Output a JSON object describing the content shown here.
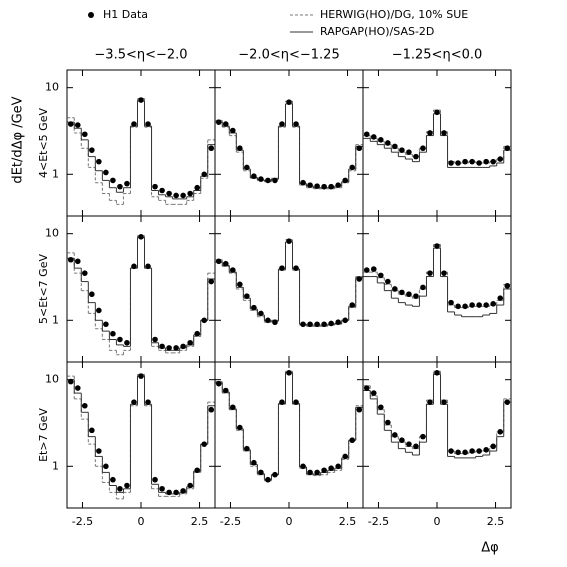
{
  "ylabel": "dEt/dΔφ /GeV",
  "xlabel": "Δφ",
  "chart_data": [
    {
      "type": "scatter",
      "title": "−3.5<η<−2.0",
      "ylabel": "4<Et<5 GeV",
      "x": [
        -3.0,
        -2.7,
        -2.4,
        -2.1,
        -1.8,
        -1.5,
        -1.2,
        -0.9,
        -0.6,
        -0.3,
        0,
        0.3,
        0.6,
        0.9,
        1.2,
        1.5,
        1.8,
        2.1,
        2.4,
        2.7,
        3.0
      ],
      "xlim": [
        -3.16,
        3.16
      ],
      "xticks": [
        -2.5,
        0,
        2.5
      ],
      "ylim": [
        0.33,
        16
      ],
      "yticks": [
        1,
        10
      ],
      "ylog": true,
      "series": [
        {
          "name": "H1 Data",
          "style": "points",
          "color": "#000000",
          "values": [
            3.8,
            3.7,
            2.9,
            1.9,
            1.4,
            1.05,
            0.85,
            0.72,
            0.78,
            3.8,
            7.2,
            3.8,
            0.72,
            0.65,
            0.6,
            0.57,
            0.57,
            0.6,
            0.7,
            1.0,
            2.0
          ]
        },
        {
          "name": "HERWIG(HO)/DG, 10% SUE",
          "style": "dashed",
          "color": "#777777",
          "values": [
            4.5,
            3.0,
            2.0,
            1.2,
            0.8,
            0.6,
            0.5,
            0.45,
            0.6,
            3.5,
            7.5,
            3.5,
            0.55,
            0.5,
            0.45,
            0.45,
            0.45,
            0.5,
            0.6,
            0.9,
            2.5
          ]
        },
        {
          "name": "RAPGAP(HO)/SAS-2D",
          "style": "solid",
          "color": "#333333",
          "values": [
            4.0,
            3.4,
            2.5,
            1.6,
            1.1,
            0.85,
            0.7,
            0.62,
            0.7,
            3.6,
            7.0,
            3.6,
            0.65,
            0.58,
            0.55,
            0.52,
            0.52,
            0.55,
            0.65,
            0.95,
            2.2
          ]
        }
      ]
    },
    {
      "type": "scatter",
      "title": "−2.0<η<−1.25",
      "x": [
        -3.0,
        -2.7,
        -2.4,
        -2.1,
        -1.8,
        -1.5,
        -1.2,
        -0.9,
        -0.6,
        -0.3,
        0,
        0.3,
        0.6,
        0.9,
        1.2,
        1.5,
        1.8,
        2.1,
        2.4,
        2.7,
        3.0
      ],
      "xlim": [
        -3.16,
        3.16
      ],
      "xticks": [
        -2.5,
        0,
        2.5
      ],
      "ylim": [
        0.33,
        16
      ],
      "yticks": [
        1,
        10
      ],
      "ylog": true,
      "series": [
        {
          "style": "points",
          "color": "#000000",
          "values": [
            4.0,
            3.8,
            3.2,
            2.0,
            1.2,
            0.95,
            0.88,
            0.85,
            0.85,
            3.8,
            6.8,
            3.8,
            0.8,
            0.75,
            0.73,
            0.72,
            0.72,
            0.75,
            0.85,
            1.2,
            2.0
          ]
        },
        {
          "style": "dashed",
          "color": "#777777",
          "values": [
            4.2,
            3.5,
            2.8,
            1.8,
            1.1,
            0.9,
            0.85,
            0.82,
            0.9,
            3.5,
            7.0,
            3.5,
            0.75,
            0.7,
            0.68,
            0.68,
            0.68,
            0.7,
            0.8,
            1.1,
            2.2
          ]
        },
        {
          "style": "solid",
          "color": "#333333",
          "values": [
            4.0,
            3.6,
            3.0,
            1.9,
            1.15,
            0.92,
            0.86,
            0.84,
            0.88,
            3.6,
            6.5,
            3.6,
            0.78,
            0.73,
            0.7,
            0.7,
            0.7,
            0.73,
            0.82,
            1.15,
            2.1
          ]
        }
      ]
    },
    {
      "type": "scatter",
      "title": "−1.25<η<0.0",
      "x": [
        -3.0,
        -2.7,
        -2.4,
        -2.1,
        -1.8,
        -1.5,
        -1.2,
        -0.9,
        -0.6,
        -0.3,
        0,
        0.3,
        0.6,
        0.9,
        1.2,
        1.5,
        1.8,
        2.1,
        2.4,
        2.7,
        3.0
      ],
      "xlim": [
        -3.16,
        3.16
      ],
      "xticks": [
        -2.5,
        0,
        2.5
      ],
      "ylim": [
        0.33,
        16
      ],
      "yticks": [
        1,
        10
      ],
      "ylog": true,
      "series": [
        {
          "style": "points",
          "color": "#000000",
          "values": [
            2.9,
            2.7,
            2.5,
            2.3,
            2.1,
            1.9,
            1.8,
            1.6,
            2.0,
            3.0,
            5.2,
            3.0,
            1.35,
            1.35,
            1.4,
            1.4,
            1.35,
            1.4,
            1.4,
            1.5,
            2.0
          ]
        },
        {
          "style": "dashed",
          "color": "#777777",
          "values": [
            2.8,
            2.6,
            2.4,
            2.2,
            2.0,
            1.8,
            1.7,
            1.6,
            2.0,
            3.1,
            5.5,
            3.1,
            1.4,
            1.35,
            1.35,
            1.4,
            1.35,
            1.35,
            1.4,
            1.5,
            2.1
          ]
        },
        {
          "style": "solid",
          "color": "#333333",
          "values": [
            2.6,
            2.4,
            2.2,
            2.0,
            1.8,
            1.6,
            1.5,
            1.4,
            1.8,
            2.8,
            5.0,
            2.8,
            1.2,
            1.2,
            1.2,
            1.2,
            1.2,
            1.2,
            1.25,
            1.35,
            1.9
          ]
        }
      ]
    },
    {
      "type": "scatter",
      "ylabel": "5<Et<7 GeV",
      "x": [
        -3.0,
        -2.7,
        -2.4,
        -2.1,
        -1.8,
        -1.5,
        -1.2,
        -0.9,
        -0.6,
        -0.3,
        0,
        0.3,
        0.6,
        0.9,
        1.2,
        1.5,
        1.8,
        2.1,
        2.4,
        2.7,
        3.0
      ],
      "xlim": [
        -3.16,
        3.16
      ],
      "xticks": [
        -2.5,
        0,
        2.5
      ],
      "ylim": [
        0.33,
        16
      ],
      "yticks": [
        1,
        10
      ],
      "ylog": true,
      "series": [
        {
          "style": "points",
          "color": "#000000",
          "values": [
            5.0,
            4.8,
            3.5,
            2.0,
            1.3,
            0.9,
            0.7,
            0.6,
            0.55,
            4.2,
            9.2,
            4.2,
            0.6,
            0.5,
            0.48,
            0.48,
            0.5,
            0.55,
            0.7,
            1.0,
            2.8
          ]
        },
        {
          "style": "dashed",
          "color": "#777777",
          "values": [
            6.0,
            3.5,
            2.2,
            1.2,
            0.8,
            0.6,
            0.45,
            0.4,
            0.45,
            4.0,
            9.5,
            4.0,
            0.5,
            0.45,
            0.42,
            0.42,
            0.45,
            0.5,
            0.65,
            1.0,
            3.5
          ]
        },
        {
          "style": "solid",
          "color": "#333333",
          "values": [
            5.2,
            4.0,
            2.8,
            1.6,
            1.0,
            0.75,
            0.6,
            0.52,
            0.5,
            4.0,
            9.0,
            4.0,
            0.55,
            0.48,
            0.45,
            0.45,
            0.48,
            0.52,
            0.68,
            1.0,
            3.0
          ]
        }
      ]
    },
    {
      "type": "scatter",
      "x": [
        -3.0,
        -2.7,
        -2.4,
        -2.1,
        -1.8,
        -1.5,
        -1.2,
        -0.9,
        -0.6,
        -0.3,
        0,
        0.3,
        0.6,
        0.9,
        1.2,
        1.5,
        1.8,
        2.1,
        2.4,
        2.7,
        3.0
      ],
      "xlim": [
        -3.16,
        3.16
      ],
      "xticks": [
        -2.5,
        0,
        2.5
      ],
      "ylim": [
        0.33,
        16
      ],
      "yticks": [
        1,
        10
      ],
      "ylog": true,
      "series": [
        {
          "style": "points",
          "color": "#000000",
          "values": [
            4.8,
            4.5,
            3.8,
            2.6,
            1.9,
            1.4,
            1.2,
            1.0,
            0.95,
            4.0,
            8.2,
            4.0,
            0.9,
            0.9,
            0.9,
            0.9,
            0.92,
            0.95,
            1.0,
            1.5,
            3.0
          ]
        },
        {
          "style": "dashed",
          "color": "#777777",
          "values": [
            5.0,
            4.2,
            3.5,
            2.3,
            1.7,
            1.3,
            1.1,
            0.95,
            1.0,
            3.8,
            8.5,
            3.8,
            0.88,
            0.85,
            0.85,
            0.85,
            0.88,
            0.9,
            1.0,
            1.4,
            3.2
          ]
        },
        {
          "style": "solid",
          "color": "#333333",
          "values": [
            4.7,
            4.3,
            3.6,
            2.4,
            1.8,
            1.35,
            1.15,
            0.98,
            0.98,
            3.9,
            8.0,
            3.9,
            0.9,
            0.88,
            0.88,
            0.88,
            0.9,
            0.92,
            1.0,
            1.45,
            3.1
          ]
        }
      ]
    },
    {
      "type": "scatter",
      "x": [
        -3.0,
        -2.7,
        -2.4,
        -2.1,
        -1.8,
        -1.5,
        -1.2,
        -0.9,
        -0.6,
        -0.3,
        0,
        0.3,
        0.6,
        0.9,
        1.2,
        1.5,
        1.8,
        2.1,
        2.4,
        2.7,
        3.0
      ],
      "xlim": [
        -3.16,
        3.16
      ],
      "xticks": [
        -2.5,
        0,
        2.5
      ],
      "ylim": [
        0.33,
        16
      ],
      "yticks": [
        1,
        10
      ],
      "ylog": true,
      "series": [
        {
          "style": "points",
          "color": "#000000",
          "values": [
            3.8,
            3.9,
            3.3,
            2.8,
            2.3,
            2.1,
            2.0,
            1.9,
            2.4,
            3.5,
            7.2,
            3.5,
            1.6,
            1.45,
            1.45,
            1.5,
            1.5,
            1.5,
            1.55,
            1.8,
            2.5
          ]
        },
        {
          "style": "dashed",
          "color": "#777777",
          "values": [
            3.6,
            3.6,
            3.1,
            2.6,
            2.2,
            2.0,
            1.9,
            1.8,
            2.3,
            3.6,
            7.5,
            3.6,
            1.5,
            1.4,
            1.4,
            1.45,
            1.45,
            1.45,
            1.5,
            1.7,
            2.6
          ]
        },
        {
          "style": "solid",
          "color": "#333333",
          "values": [
            3.2,
            3.2,
            2.7,
            2.2,
            1.8,
            1.6,
            1.5,
            1.45,
            1.9,
            3.2,
            6.8,
            3.2,
            1.25,
            1.15,
            1.1,
            1.1,
            1.1,
            1.15,
            1.2,
            1.5,
            2.3
          ]
        }
      ]
    },
    {
      "type": "scatter",
      "ylabel": "Et>7 GeV",
      "x": [
        -3.0,
        -2.7,
        -2.4,
        -2.1,
        -1.8,
        -1.5,
        -1.2,
        -0.9,
        -0.6,
        -0.3,
        0,
        0.3,
        0.6,
        0.9,
        1.2,
        1.5,
        1.8,
        2.1,
        2.4,
        2.7,
        3.0
      ],
      "xlim": [
        -3.16,
        3.16
      ],
      "xticks": [
        -2.5,
        0,
        2.5
      ],
      "ylim": [
        0.33,
        16
      ],
      "yticks": [
        1,
        10
      ],
      "ylog": true,
      "series": [
        {
          "style": "points",
          "color": "#000000",
          "values": [
            9.5,
            8.0,
            5.0,
            2.6,
            1.5,
            1.0,
            0.7,
            0.55,
            0.6,
            5.5,
            11.0,
            5.5,
            0.7,
            0.55,
            0.5,
            0.5,
            0.52,
            0.6,
            0.9,
            1.8,
            4.5
          ]
        },
        {
          "style": "dashed",
          "color": "#777777",
          "values": [
            11.0,
            6.0,
            3.5,
            1.8,
            1.0,
            0.65,
            0.5,
            0.42,
            0.5,
            5.0,
            11.5,
            5.0,
            0.55,
            0.45,
            0.45,
            0.45,
            0.48,
            0.55,
            0.85,
            1.8,
            5.5
          ]
        },
        {
          "style": "solid",
          "color": "#333333",
          "values": [
            10.0,
            7.0,
            4.2,
            2.2,
            1.3,
            0.85,
            0.6,
            0.5,
            0.55,
            5.2,
            11.0,
            5.2,
            0.62,
            0.5,
            0.48,
            0.48,
            0.5,
            0.58,
            0.88,
            1.8,
            5.0
          ]
        }
      ]
    },
    {
      "type": "scatter",
      "x": [
        -3.0,
        -2.7,
        -2.4,
        -2.1,
        -1.8,
        -1.5,
        -1.2,
        -0.9,
        -0.6,
        -0.3,
        0,
        0.3,
        0.6,
        0.9,
        1.2,
        1.5,
        1.8,
        2.1,
        2.4,
        2.7,
        3.0
      ],
      "xlim": [
        -3.16,
        3.16
      ],
      "xticks": [
        -2.5,
        0,
        2.5
      ],
      "ylim": [
        0.33,
        16
      ],
      "yticks": [
        1,
        10
      ],
      "ylog": true,
      "series": [
        {
          "style": "points",
          "color": "#000000",
          "values": [
            9.0,
            7.5,
            4.8,
            2.8,
            1.6,
            1.1,
            0.85,
            0.7,
            0.8,
            5.5,
            12.0,
            5.5,
            1.0,
            0.85,
            0.85,
            0.9,
            0.95,
            1.0,
            1.3,
            2.0,
            4.5
          ]
        },
        {
          "style": "dashed",
          "color": "#777777",
          "values": [
            9.5,
            7.0,
            4.5,
            2.6,
            1.5,
            1.0,
            0.8,
            0.68,
            0.8,
            5.2,
            12.5,
            5.2,
            0.95,
            0.8,
            0.78,
            0.8,
            0.85,
            0.9,
            1.2,
            2.0,
            5.0
          ]
        },
        {
          "style": "solid",
          "color": "#333333",
          "values": [
            9.2,
            7.2,
            4.6,
            2.7,
            1.55,
            1.05,
            0.82,
            0.7,
            0.8,
            5.3,
            12.0,
            5.3,
            0.98,
            0.82,
            0.8,
            0.85,
            0.9,
            0.95,
            1.25,
            2.0,
            4.8
          ]
        }
      ]
    },
    {
      "type": "scatter",
      "x": [
        -3.0,
        -2.7,
        -2.4,
        -2.1,
        -1.8,
        -1.5,
        -1.2,
        -0.9,
        -0.6,
        -0.3,
        0,
        0.3,
        0.6,
        0.9,
        1.2,
        1.5,
        1.8,
        2.1,
        2.4,
        2.7,
        3.0
      ],
      "xlim": [
        -3.16,
        3.16
      ],
      "xticks": [
        -2.5,
        0,
        2.5
      ],
      "ylim": [
        0.33,
        16
      ],
      "yticks": [
        1,
        10
      ],
      "ylog": true,
      "series": [
        {
          "style": "points",
          "color": "#000000",
          "values": [
            8.0,
            7.0,
            4.8,
            3.2,
            2.3,
            2.0,
            1.8,
            1.7,
            2.2,
            5.5,
            12.0,
            5.5,
            1.5,
            1.45,
            1.45,
            1.5,
            1.5,
            1.55,
            1.7,
            2.5,
            5.5
          ]
        },
        {
          "style": "dashed",
          "color": "#777777",
          "values": [
            8.5,
            6.5,
            4.5,
            3.0,
            2.2,
            1.9,
            1.7,
            1.6,
            2.2,
            5.8,
            12.5,
            5.8,
            1.5,
            1.4,
            1.4,
            1.45,
            1.5,
            1.5,
            1.7,
            2.5,
            6.0
          ]
        },
        {
          "style": "solid",
          "color": "#333333",
          "values": [
            7.5,
            6.0,
            4.0,
            2.6,
            1.9,
            1.6,
            1.45,
            1.35,
            1.9,
            5.2,
            11.5,
            5.2,
            1.3,
            1.25,
            1.25,
            1.25,
            1.3,
            1.35,
            1.5,
            2.2,
            5.5
          ]
        }
      ]
    }
  ]
}
